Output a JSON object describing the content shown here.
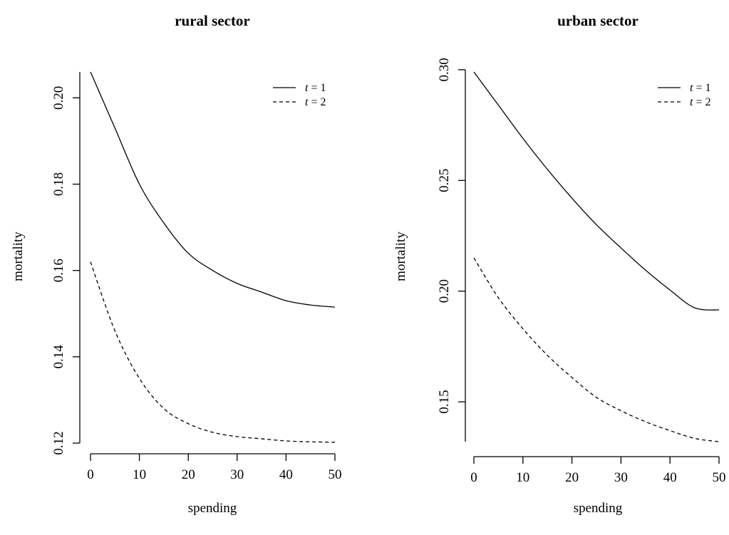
{
  "chart_data": [
    {
      "type": "line",
      "title": "rural sector",
      "xlabel": "spending",
      "ylabel": "mortality",
      "xlim": [
        0,
        50
      ],
      "ylim": [
        0.12,
        0.206
      ],
      "xticks": [
        0,
        10,
        20,
        30,
        40,
        50
      ],
      "xtick_labels": [
        "0",
        "10",
        "20",
        "30",
        "40",
        "50"
      ],
      "yticks": [
        0.12,
        0.14,
        0.16,
        0.18,
        0.2
      ],
      "ytick_labels": [
        "0.12",
        "0.14",
        "0.16",
        "0.18",
        "0.20"
      ],
      "legend_position": "top-right",
      "grid": false,
      "x": [
        0,
        5,
        10,
        15,
        20,
        25,
        30,
        35,
        40,
        45,
        50
      ],
      "series": [
        {
          "name": "t = 1",
          "legend_var": "t",
          "legend_rest": " = 1",
          "style": "solid",
          "values": [
            0.206,
            0.193,
            0.18,
            0.171,
            0.164,
            0.16,
            0.157,
            0.155,
            0.153,
            0.152,
            0.1515
          ]
        },
        {
          "name": "t = 2",
          "legend_var": "t",
          "legend_rest": " = 2",
          "style": "dashed",
          "values": [
            0.162,
            0.146,
            0.135,
            0.128,
            0.1245,
            0.1225,
            0.1215,
            0.121,
            0.1205,
            0.1203,
            0.1202
          ]
        }
      ]
    },
    {
      "type": "line",
      "title": "urban sector",
      "xlabel": "spending",
      "ylabel": "mortality",
      "xlim": [
        0,
        50
      ],
      "ylim": [
        0.132,
        0.299
      ],
      "xticks": [
        0,
        10,
        20,
        30,
        40,
        50
      ],
      "xtick_labels": [
        "0",
        "10",
        "20",
        "30",
        "40",
        "50"
      ],
      "yticks": [
        0.15,
        0.2,
        0.25,
        0.3
      ],
      "ytick_labels": [
        "0.15",
        "0.20",
        "0.25",
        "0.30"
      ],
      "legend_position": "top-right",
      "grid": false,
      "x": [
        0,
        5,
        10,
        15,
        20,
        25,
        30,
        35,
        40,
        45,
        50
      ],
      "series": [
        {
          "name": "t = 1",
          "legend_var": "t",
          "legend_rest": " = 1",
          "style": "solid",
          "values": [
            0.299,
            0.284,
            0.269,
            0.255,
            0.242,
            0.23,
            0.2195,
            0.2095,
            0.2005,
            0.1925,
            0.1915
          ]
        },
        {
          "name": "t = 2",
          "legend_var": "t",
          "legend_rest": " = 2",
          "style": "dashed",
          "values": [
            0.215,
            0.197,
            0.183,
            0.171,
            0.161,
            0.152,
            0.146,
            0.141,
            0.137,
            0.1335,
            0.132
          ]
        }
      ]
    }
  ]
}
